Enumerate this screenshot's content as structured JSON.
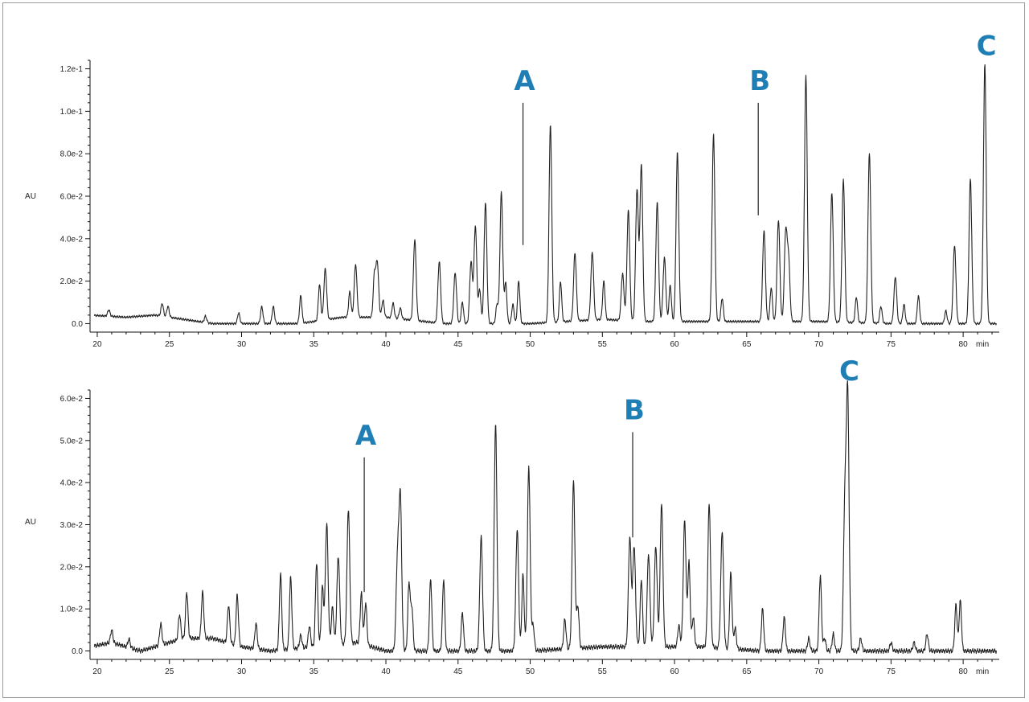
{
  "colors": {
    "trace": "#222222",
    "marker": "#1f7fb5",
    "frame": "#9a9a9a"
  },
  "chart_data": [
    {
      "type": "line",
      "title": "",
      "xlabel": "",
      "x_unit_label": "min",
      "ylabel": "AU",
      "xlim": [
        19.5,
        82.5
      ],
      "ylim": [
        -0.004,
        0.124
      ],
      "x_ticks": [
        20,
        25,
        30,
        35,
        40,
        45,
        50,
        55,
        60,
        65,
        70,
        75,
        80
      ],
      "x_tick_labels": [
        "20",
        "25",
        "30",
        "35",
        "40",
        "45",
        "50",
        "55",
        "60",
        "65",
        "70",
        "75",
        "80"
      ],
      "y_ticks": [
        0,
        0.02,
        0.04,
        0.06,
        0.08,
        0.1,
        0.12
      ],
      "y_tick_labels": [
        "0.0",
        "2.0e-2",
        "4.0e-2",
        "6.0e-2",
        "8.0e-2",
        "1.0e-1",
        "1.2e-1"
      ],
      "baseline": [
        [
          19.5,
          0.004
        ],
        [
          22,
          0.003
        ],
        [
          24,
          0.004
        ],
        [
          26,
          0.002
        ],
        [
          28,
          0.0
        ],
        [
          30,
          0.0
        ],
        [
          34,
          0.0
        ],
        [
          37,
          0.003
        ],
        [
          40,
          0.003
        ],
        [
          44,
          0.0
        ],
        [
          47,
          0.0
        ],
        [
          50,
          0.0
        ],
        [
          55,
          0.002
        ],
        [
          58,
          0.001
        ],
        [
          62,
          0.001
        ],
        [
          66,
          0.001
        ],
        [
          70,
          0.001
        ],
        [
          75,
          0.0
        ],
        [
          80,
          0.0
        ],
        [
          82.5,
          0.0
        ]
      ],
      "peaks": [
        [
          20.8,
          0.003
        ],
        [
          24.5,
          0.006
        ],
        [
          24.9,
          0.005
        ],
        [
          27.5,
          0.003
        ],
        [
          29.8,
          0.005
        ],
        [
          31.4,
          0.008
        ],
        [
          32.2,
          0.008
        ],
        [
          34.1,
          0.013
        ],
        [
          35.4,
          0.017
        ],
        [
          35.8,
          0.024
        ],
        [
          37.5,
          0.012
        ],
        [
          37.9,
          0.025
        ],
        [
          39.2,
          0.019
        ],
        [
          39.4,
          0.026
        ],
        [
          39.8,
          0.008
        ],
        [
          40.5,
          0.007
        ],
        [
          41.0,
          0.005
        ],
        [
          42.0,
          0.038
        ],
        [
          43.7,
          0.029
        ],
        [
          44.8,
          0.024
        ],
        [
          45.3,
          0.01
        ],
        [
          45.9,
          0.029
        ],
        [
          46.2,
          0.046
        ],
        [
          46.5,
          0.016
        ],
        [
          46.9,
          0.057
        ],
        [
          47.7,
          0.009
        ],
        [
          48.0,
          0.062
        ],
        [
          48.3,
          0.019
        ],
        [
          48.8,
          0.009
        ],
        [
          49.2,
          0.02
        ],
        [
          51.4,
          0.093
        ],
        [
          52.1,
          0.019
        ],
        [
          53.1,
          0.032
        ],
        [
          54.3,
          0.032
        ],
        [
          55.1,
          0.018
        ],
        [
          56.4,
          0.022
        ],
        [
          56.8,
          0.052
        ],
        [
          57.4,
          0.062
        ],
        [
          57.7,
          0.074
        ],
        [
          58.8,
          0.056
        ],
        [
          59.3,
          0.03
        ],
        [
          59.7,
          0.017
        ],
        [
          60.2,
          0.08
        ],
        [
          62.7,
          0.088
        ],
        [
          63.3,
          0.011
        ],
        [
          66.2,
          0.043
        ],
        [
          66.7,
          0.016
        ],
        [
          67.2,
          0.048
        ],
        [
          67.7,
          0.041
        ],
        [
          67.9,
          0.029
        ],
        [
          69.1,
          0.116
        ],
        [
          70.9,
          0.061
        ],
        [
          71.7,
          0.067
        ],
        [
          72.6,
          0.012
        ],
        [
          73.5,
          0.08
        ],
        [
          74.3,
          0.008
        ],
        [
          75.3,
          0.022
        ],
        [
          75.9,
          0.009
        ],
        [
          76.9,
          0.013
        ],
        [
          78.8,
          0.006
        ],
        [
          79.4,
          0.037
        ],
        [
          80.5,
          0.068
        ],
        [
          81.5,
          0.122
        ]
      ],
      "annotations": [
        {
          "text": "A",
          "x": 49.5,
          "y_top": 0.104,
          "y_bottom": 0.037
        },
        {
          "text": "B",
          "x": 65.8,
          "y_top": 0.104,
          "y_bottom": 0.051
        },
        {
          "text": "C",
          "x": 81.5,
          "y_top": 0.122,
          "y_bottom": 0.122
        }
      ]
    },
    {
      "type": "line",
      "title": "",
      "xlabel": "",
      "x_unit_label": "min",
      "ylabel": "AU",
      "xlim": [
        19.5,
        82.5
      ],
      "ylim": [
        -0.002,
        0.062
      ],
      "x_ticks": [
        20,
        25,
        30,
        35,
        40,
        45,
        50,
        55,
        60,
        65,
        70,
        75,
        80
      ],
      "x_tick_labels": [
        "20",
        "25",
        "30",
        "35",
        "40",
        "45",
        "50",
        "55",
        "60",
        "65",
        "70",
        "75",
        "80"
      ],
      "y_ticks": [
        0,
        0.01,
        0.02,
        0.03,
        0.04,
        0.05,
        0.06
      ],
      "y_tick_labels": [
        "0.0",
        "1.0e-2",
        "2.0e-2",
        "3.0e-2",
        "4.0e-2",
        "5.0e-2",
        "6.0e-2"
      ],
      "baseline": [
        [
          19.5,
          0.001
        ],
        [
          21,
          0.002
        ],
        [
          23,
          0.0
        ],
        [
          26,
          0.003
        ],
        [
          28,
          0.003
        ],
        [
          30,
          0.001
        ],
        [
          32,
          0.0
        ],
        [
          35,
          0.001
        ],
        [
          38,
          0.002
        ],
        [
          40,
          0.0
        ],
        [
          43,
          0.0
        ],
        [
          46,
          0.0
        ],
        [
          50,
          0.0
        ],
        [
          55,
          0.001
        ],
        [
          58,
          0.001
        ],
        [
          62,
          0.001
        ],
        [
          66,
          0.0
        ],
        [
          70,
          0.0
        ],
        [
          75,
          0.0
        ],
        [
          80,
          0.0
        ],
        [
          82.5,
          0.0
        ]
      ],
      "peaks": [
        [
          21.0,
          0.003
        ],
        [
          22.2,
          0.002
        ],
        [
          24.4,
          0.005
        ],
        [
          25.7,
          0.006
        ],
        [
          26.2,
          0.011
        ],
        [
          27.3,
          0.011
        ],
        [
          29.1,
          0.009
        ],
        [
          29.7,
          0.012
        ],
        [
          31.0,
          0.006
        ],
        [
          32.7,
          0.018
        ],
        [
          33.4,
          0.017
        ],
        [
          34.1,
          0.003
        ],
        [
          34.7,
          0.005
        ],
        [
          35.2,
          0.02
        ],
        [
          35.6,
          0.014
        ],
        [
          35.9,
          0.029
        ],
        [
          36.3,
          0.009
        ],
        [
          36.7,
          0.021
        ],
        [
          37.4,
          0.032
        ],
        [
          38.3,
          0.012
        ],
        [
          38.6,
          0.01
        ],
        [
          40.8,
          0.021
        ],
        [
          41.0,
          0.036
        ],
        [
          41.6,
          0.016
        ],
        [
          41.8,
          0.01
        ],
        [
          43.1,
          0.017
        ],
        [
          44.0,
          0.017
        ],
        [
          45.3,
          0.009
        ],
        [
          46.6,
          0.027
        ],
        [
          47.6,
          0.054
        ],
        [
          49.1,
          0.029
        ],
        [
          49.5,
          0.018
        ],
        [
          49.9,
          0.044
        ],
        [
          50.2,
          0.006
        ],
        [
          52.4,
          0.007
        ],
        [
          53.0,
          0.04
        ],
        [
          53.3,
          0.01
        ],
        [
          56.9,
          0.026
        ],
        [
          57.2,
          0.024
        ],
        [
          57.7,
          0.016
        ],
        [
          58.2,
          0.022
        ],
        [
          58.7,
          0.024
        ],
        [
          59.1,
          0.034
        ],
        [
          60.3,
          0.005
        ],
        [
          60.7,
          0.03
        ],
        [
          61.0,
          0.02
        ],
        [
          61.3,
          0.007
        ],
        [
          62.4,
          0.034
        ],
        [
          63.3,
          0.028
        ],
        [
          63.9,
          0.018
        ],
        [
          64.2,
          0.005
        ],
        [
          66.1,
          0.01
        ],
        [
          67.6,
          0.008
        ],
        [
          69.3,
          0.003
        ],
        [
          70.1,
          0.018
        ],
        [
          70.4,
          0.003
        ],
        [
          71.0,
          0.004
        ],
        [
          71.8,
          0.034
        ],
        [
          72.0,
          0.06
        ],
        [
          72.9,
          0.003
        ],
        [
          75.0,
          0.002
        ],
        [
          76.6,
          0.002
        ],
        [
          77.5,
          0.004
        ],
        [
          79.5,
          0.011
        ],
        [
          79.8,
          0.012
        ]
      ],
      "annotations": [
        {
          "text": "A",
          "x": 38.5,
          "y_top": 0.046,
          "y_bottom": 0.014
        },
        {
          "text": "B",
          "x": 57.1,
          "y_top": 0.052,
          "y_bottom": 0.027
        },
        {
          "text": "C",
          "x": 72.0,
          "y_top": 0.062,
          "y_bottom": 0.062
        }
      ]
    }
  ]
}
